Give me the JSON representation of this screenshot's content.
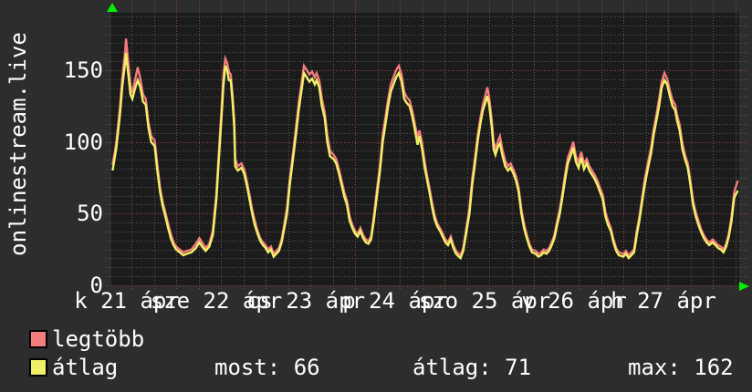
{
  "y_axis_label": "onlinestream.live",
  "legend": [
    {
      "label": "legtöbb",
      "color": "#f47c7c"
    },
    {
      "label": "átlag",
      "color": "#f0f068"
    }
  ],
  "stats_display": {
    "most": "most: 66",
    "atlag": "átlag: 71",
    "max": "max: 162"
  },
  "colors": {
    "outer_bg": "#2d2d2d",
    "plot_bg": "#1b1b1b",
    "grid_minor": "#575757",
    "grid_major": "#9a4747",
    "text": "#ffffff",
    "arrow": "#00f000"
  },
  "chart_data": {
    "type": "line",
    "title": "onlinestream.live",
    "ylabel": "onlinestream.live",
    "xlabel": "",
    "ylim": [
      0,
      190
    ],
    "yticks": [
      0,
      50,
      100,
      150
    ],
    "x_unit": "days since 21 ápr 00:00",
    "xlim": [
      0.29,
      7.29
    ],
    "x_day_labels": [
      "k 21 ápr",
      "sze 22 ápr",
      "cs 23 ápr",
      "p 24 ápr",
      "szo 25 ápr",
      "v 26 ápr",
      "h 27 ápr"
    ],
    "grid": {
      "y_major_step": 50,
      "y_minor_step": 6.25,
      "x_major_step_days": 1,
      "x_minor_step_days": 0.25,
      "style": "dotted"
    },
    "legend_position": "bottom-left",
    "stats": {
      "most": 66,
      "atlag": 71,
      "max": 162
    },
    "x": [
      0.29,
      0.33,
      0.37,
      0.4,
      0.43,
      0.44,
      0.46,
      0.49,
      0.51,
      0.54,
      0.57,
      0.6,
      0.63,
      0.66,
      0.69,
      0.72,
      0.76,
      0.79,
      0.82,
      0.85,
      0.88,
      0.91,
      0.94,
      0.97,
      1.0,
      1.04,
      1.08,
      1.12,
      1.17,
      1.22,
      1.26,
      1.29,
      1.33,
      1.37,
      1.41,
      1.45,
      1.48,
      1.51,
      1.53,
      1.55,
      1.57,
      1.59,
      1.61,
      1.63,
      1.65,
      1.66,
      1.69,
      1.73,
      1.76,
      1.79,
      1.82,
      1.85,
      1.88,
      1.91,
      1.94,
      1.97,
      2.0,
      2.03,
      2.06,
      2.09,
      2.12,
      2.15,
      2.18,
      2.21,
      2.24,
      2.27,
      2.31,
      2.34,
      2.37,
      2.4,
      2.43,
      2.46,
      2.49,
      2.52,
      2.55,
      2.57,
      2.6,
      2.63,
      2.66,
      2.69,
      2.72,
      2.76,
      2.79,
      2.82,
      2.85,
      2.88,
      2.91,
      2.94,
      2.97,
      3.0,
      3.03,
      3.06,
      3.09,
      3.12,
      3.15,
      3.18,
      3.21,
      3.24,
      3.28,
      3.31,
      3.34,
      3.37,
      3.4,
      3.43,
      3.46,
      3.49,
      3.52,
      3.55,
      3.58,
      3.61,
      3.64,
      3.67,
      3.7,
      3.72,
      3.75,
      3.78,
      3.81,
      3.83,
      3.86,
      3.89,
      3.92,
      3.95,
      3.98,
      4.01,
      4.04,
      4.07,
      4.1,
      4.13,
      4.16,
      4.18,
      4.21,
      4.24,
      4.28,
      4.31,
      4.34,
      4.37,
      4.4,
      4.43,
      4.46,
      4.48,
      4.5,
      4.53,
      4.55,
      4.57,
      4.6,
      4.62,
      4.65,
      4.68,
      4.71,
      4.74,
      4.77,
      4.8,
      4.83,
      4.86,
      4.89,
      4.92,
      4.95,
      4.98,
      5.02,
      5.05,
      5.08,
      5.11,
      5.14,
      5.17,
      5.2,
      5.23,
      5.26,
      5.29,
      5.32,
      5.35,
      5.38,
      5.42,
      5.44,
      5.47,
      5.5,
      5.53,
      5.56,
      5.59,
      5.62,
      5.65,
      5.68,
      5.71,
      5.74,
      5.77,
      5.8,
      5.83,
      5.86,
      5.89,
      5.92,
      5.95,
      6.0,
      6.03,
      6.06,
      6.09,
      6.12,
      6.15,
      6.18,
      6.21,
      6.24,
      6.27,
      6.31,
      6.34,
      6.37,
      6.4,
      6.43,
      6.46,
      6.49,
      6.52,
      6.55,
      6.58,
      6.6,
      6.63,
      6.66,
      6.69,
      6.72,
      6.75,
      6.78,
      6.81,
      6.84,
      6.87,
      6.9,
      6.93,
      6.96,
      7.0,
      7.03,
      7.06,
      7.09,
      7.12,
      7.15,
      7.18,
      7.21,
      7.24,
      7.28
    ],
    "series": [
      {
        "name": "legtöbb",
        "color": "#f47c7c",
        "values": [
          84,
          99,
          123,
          146,
          163,
          172,
          158,
          139,
          134,
          143,
          152,
          144,
          133,
          130,
          114,
          104,
          101,
          84,
          68,
          58,
          51,
          43,
          36,
          30,
          27,
          25,
          23,
          24,
          25,
          29,
          33,
          30,
          26,
          29,
          38,
          64,
          95,
          126,
          147,
          158,
          155,
          149,
          147,
          134,
          115,
          88,
          83,
          85,
          81,
          73,
          63,
          53,
          45,
          38,
          33,
          30,
          28,
          25,
          27,
          22,
          24,
          26,
          32,
          43,
          54,
          74,
          94,
          110,
          127,
          140,
          153,
          150,
          147,
          149,
          145,
          148,
          143,
          130,
          121,
          105,
          94,
          91,
          88,
          81,
          73,
          65,
          59,
          48,
          42,
          38,
          36,
          40,
          35,
          32,
          31,
          34,
          48,
          64,
          84,
          105,
          117,
          130,
          140,
          145,
          150,
          153,
          147,
          135,
          131,
          129,
          122,
          112,
          103,
          108,
          99,
          86,
          75,
          69,
          58,
          49,
          43,
          40,
          36,
          32,
          30,
          34,
          28,
          24,
          22,
          21,
          26,
          38,
          54,
          74,
          88,
          104,
          116,
          126,
          133,
          138,
          131,
          115,
          100,
          95,
          101,
          104,
          94,
          87,
          83,
          85,
          81,
          76,
          68,
          53,
          43,
          35,
          29,
          25,
          24,
          22,
          23,
          25,
          24,
          26,
          30,
          35,
          45,
          53,
          65,
          78,
          89,
          96,
          100,
          90,
          86,
          93,
          85,
          88,
          83,
          80,
          77,
          73,
          68,
          63,
          51,
          45,
          40,
          32,
          26,
          23,
          22,
          24,
          21,
          23,
          25,
          38,
          48,
          61,
          74,
          84,
          96,
          109,
          119,
          130,
          142,
          148,
          144,
          136,
          129,
          126,
          119,
          112,
          99,
          91,
          85,
          73,
          59,
          51,
          45,
          39,
          35,
          32,
          30,
          32,
          30,
          28,
          27,
          25,
          29,
          36,
          48,
          65,
          73
        ]
      },
      {
        "name": "átlag",
        "color": "#f0f068",
        "values": [
          80,
          95,
          118,
          140,
          155,
          162,
          150,
          133,
          130,
          137,
          143,
          138,
          128,
          126,
          110,
          100,
          97,
          80,
          65,
          55,
          48,
          40,
          33,
          28,
          25,
          23,
          21,
          22,
          23,
          26,
          30,
          27,
          24,
          27,
          35,
          60,
          90,
          120,
          140,
          153,
          150,
          143,
          143,
          129,
          110,
          83,
          80,
          82,
          78,
          70,
          60,
          50,
          42,
          36,
          31,
          28,
          26,
          23,
          25,
          20,
          22,
          24,
          30,
          40,
          50,
          70,
          90,
          105,
          122,
          135,
          148,
          145,
          142,
          144,
          140,
          143,
          138,
          125,
          117,
          100,
          90,
          88,
          85,
          78,
          70,
          62,
          56,
          45,
          40,
          36,
          34,
          38,
          33,
          30,
          29,
          32,
          45,
          60,
          80,
          100,
          112,
          125,
          135,
          140,
          145,
          148,
          142,
          130,
          127,
          125,
          118,
          108,
          98,
          104,
          95,
          82,
          72,
          66,
          55,
          46,
          41,
          38,
          34,
          30,
          28,
          32,
          26,
          22,
          20,
          19,
          24,
          35,
          50,
          70,
          84,
          100,
          112,
          122,
          128,
          132,
          126,
          110,
          95,
          91,
          97,
          99,
          90,
          83,
          80,
          82,
          78,
          73,
          65,
          50,
          40,
          33,
          27,
          23,
          22,
          20,
          21,
          23,
          22,
          24,
          28,
          33,
          42,
          50,
          62,
          74,
          85,
          92,
          96,
          86,
          82,
          89,
          81,
          85,
          80,
          77,
          74,
          70,
          65,
          60,
          48,
          42,
          38,
          30,
          24,
          21,
          20,
          22,
          19,
          21,
          23,
          35,
          45,
          58,
          70,
          80,
          92,
          105,
          115,
          125,
          138,
          143,
          140,
          132,
          125,
          122,
          115,
          108,
          95,
          88,
          82,
          70,
          56,
          48,
          42,
          37,
          33,
          30,
          28,
          30,
          28,
          26,
          25,
          23,
          27,
          34,
          45,
          61,
          66
        ]
      }
    ]
  }
}
